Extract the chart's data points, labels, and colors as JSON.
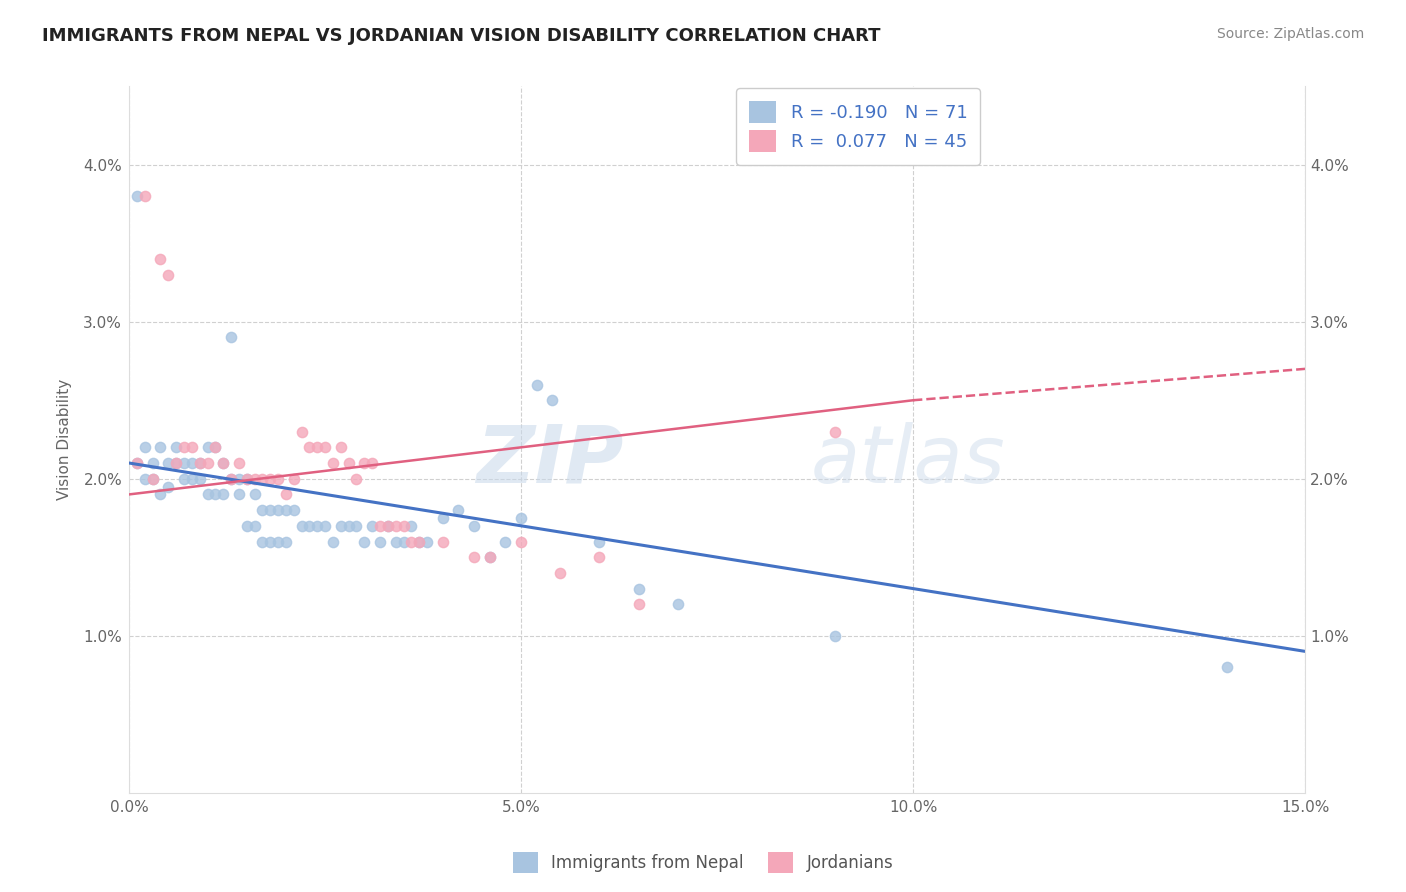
{
  "title": "IMMIGRANTS FROM NEPAL VS JORDANIAN VISION DISABILITY CORRELATION CHART",
  "source": "Source: ZipAtlas.com",
  "ylabel": "Vision Disability",
  "xlabel": "",
  "xlim": [
    0.0,
    0.15
  ],
  "ylim": [
    0.0,
    0.045
  ],
  "xticks": [
    0.0,
    0.05,
    0.1,
    0.15
  ],
  "xtick_labels": [
    "0.0%",
    "5.0%",
    "10.0%",
    "15.0%"
  ],
  "yticks": [
    0.01,
    0.02,
    0.03,
    0.04
  ],
  "ytick_labels": [
    "1.0%",
    "2.0%",
    "3.0%",
    "4.0%"
  ],
  "nepal_color": "#a8c4e0",
  "jordan_color": "#f4a7b9",
  "nepal_line_color": "#4472c4",
  "jordan_line_color": "#e06080",
  "background_color": "#ffffff",
  "grid_color": "#d0d0d0",
  "watermark": "ZIPatlas",
  "nepal_line": [
    0.0,
    0.021,
    0.15,
    0.009
  ],
  "jordan_line": [
    0.0,
    0.019,
    0.1,
    0.025
  ],
  "jordan_line_ext": [
    0.1,
    0.025,
    0.15,
    0.027
  ],
  "nepal_points": [
    [
      0.001,
      0.038
    ],
    [
      0.001,
      0.021
    ],
    [
      0.002,
      0.022
    ],
    [
      0.002,
      0.02
    ],
    [
      0.003,
      0.021
    ],
    [
      0.003,
      0.02
    ],
    [
      0.004,
      0.022
    ],
    [
      0.004,
      0.019
    ],
    [
      0.005,
      0.021
    ],
    [
      0.005,
      0.0195
    ],
    [
      0.006,
      0.022
    ],
    [
      0.006,
      0.021
    ],
    [
      0.007,
      0.021
    ],
    [
      0.007,
      0.02
    ],
    [
      0.008,
      0.021
    ],
    [
      0.008,
      0.02
    ],
    [
      0.009,
      0.021
    ],
    [
      0.009,
      0.02
    ],
    [
      0.01,
      0.022
    ],
    [
      0.01,
      0.019
    ],
    [
      0.011,
      0.022
    ],
    [
      0.011,
      0.019
    ],
    [
      0.012,
      0.021
    ],
    [
      0.012,
      0.019
    ],
    [
      0.013,
      0.029
    ],
    [
      0.013,
      0.02
    ],
    [
      0.014,
      0.02
    ],
    [
      0.014,
      0.019
    ],
    [
      0.015,
      0.02
    ],
    [
      0.015,
      0.017
    ],
    [
      0.016,
      0.019
    ],
    [
      0.016,
      0.017
    ],
    [
      0.017,
      0.018
    ],
    [
      0.017,
      0.016
    ],
    [
      0.018,
      0.018
    ],
    [
      0.018,
      0.016
    ],
    [
      0.019,
      0.018
    ],
    [
      0.019,
      0.016
    ],
    [
      0.02,
      0.018
    ],
    [
      0.02,
      0.016
    ],
    [
      0.021,
      0.018
    ],
    [
      0.022,
      0.017
    ],
    [
      0.023,
      0.017
    ],
    [
      0.024,
      0.017
    ],
    [
      0.025,
      0.017
    ],
    [
      0.026,
      0.016
    ],
    [
      0.027,
      0.017
    ],
    [
      0.028,
      0.017
    ],
    [
      0.029,
      0.017
    ],
    [
      0.03,
      0.016
    ],
    [
      0.031,
      0.017
    ],
    [
      0.032,
      0.016
    ],
    [
      0.033,
      0.017
    ],
    [
      0.034,
      0.016
    ],
    [
      0.035,
      0.016
    ],
    [
      0.036,
      0.017
    ],
    [
      0.037,
      0.016
    ],
    [
      0.038,
      0.016
    ],
    [
      0.04,
      0.0175
    ],
    [
      0.042,
      0.018
    ],
    [
      0.044,
      0.017
    ],
    [
      0.046,
      0.015
    ],
    [
      0.048,
      0.016
    ],
    [
      0.05,
      0.0175
    ],
    [
      0.052,
      0.026
    ],
    [
      0.054,
      0.025
    ],
    [
      0.06,
      0.016
    ],
    [
      0.065,
      0.013
    ],
    [
      0.07,
      0.012
    ],
    [
      0.09,
      0.01
    ],
    [
      0.14,
      0.008
    ]
  ],
  "jordan_points": [
    [
      0.001,
      0.021
    ],
    [
      0.002,
      0.038
    ],
    [
      0.003,
      0.02
    ],
    [
      0.004,
      0.034
    ],
    [
      0.005,
      0.033
    ],
    [
      0.006,
      0.021
    ],
    [
      0.007,
      0.022
    ],
    [
      0.008,
      0.022
    ],
    [
      0.009,
      0.021
    ],
    [
      0.01,
      0.021
    ],
    [
      0.011,
      0.022
    ],
    [
      0.012,
      0.021
    ],
    [
      0.013,
      0.02
    ],
    [
      0.014,
      0.021
    ],
    [
      0.015,
      0.02
    ],
    [
      0.016,
      0.02
    ],
    [
      0.017,
      0.02
    ],
    [
      0.018,
      0.02
    ],
    [
      0.019,
      0.02
    ],
    [
      0.02,
      0.019
    ],
    [
      0.021,
      0.02
    ],
    [
      0.022,
      0.023
    ],
    [
      0.023,
      0.022
    ],
    [
      0.024,
      0.022
    ],
    [
      0.025,
      0.022
    ],
    [
      0.026,
      0.021
    ],
    [
      0.027,
      0.022
    ],
    [
      0.028,
      0.021
    ],
    [
      0.029,
      0.02
    ],
    [
      0.03,
      0.021
    ],
    [
      0.031,
      0.021
    ],
    [
      0.032,
      0.017
    ],
    [
      0.033,
      0.017
    ],
    [
      0.034,
      0.017
    ],
    [
      0.035,
      0.017
    ],
    [
      0.036,
      0.016
    ],
    [
      0.037,
      0.016
    ],
    [
      0.04,
      0.016
    ],
    [
      0.044,
      0.015
    ],
    [
      0.046,
      0.015
    ],
    [
      0.05,
      0.016
    ],
    [
      0.055,
      0.014
    ],
    [
      0.06,
      0.015
    ],
    [
      0.065,
      0.012
    ],
    [
      0.09,
      0.023
    ]
  ]
}
